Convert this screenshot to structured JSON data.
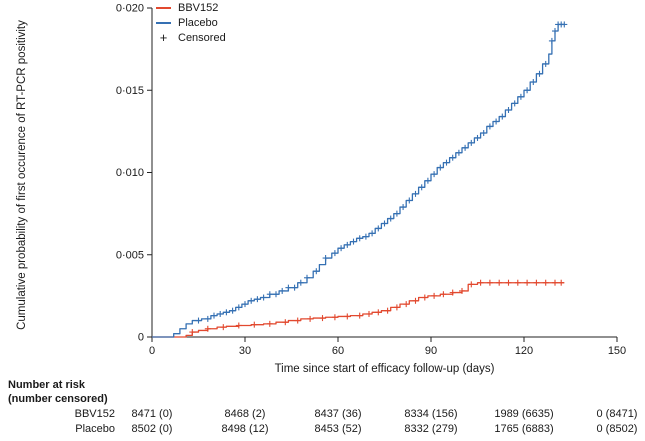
{
  "colors": {
    "axis": "#222222",
    "text": "#1a1a1a",
    "bbv152": "#e2492f",
    "placebo": "#3570b3"
  },
  "legend": {
    "items": [
      {
        "label": "BBV152",
        "color": "#e2492f"
      },
      {
        "label": "Placebo",
        "color": "#3570b3"
      },
      {
        "label": "Censored",
        "symbol": "+",
        "color": "#1a1a1a"
      }
    ]
  },
  "chart_data": {
    "type": "line",
    "subtype": "kaplan-meier-cumulative-incidence-step",
    "title": "",
    "xlabel": "Time since start of efficacy follow-up (days)",
    "ylabel": "Cumulative probability of first occurence of RT-PCR positivity",
    "xlim": [
      0,
      150
    ],
    "ylim": [
      0,
      0.02
    ],
    "grid": false,
    "legend_position": "top-left",
    "x_ticks": [
      {
        "value": 0,
        "label": "0"
      },
      {
        "value": 30,
        "label": "30"
      },
      {
        "value": 60,
        "label": "60"
      },
      {
        "value": 90,
        "label": "90"
      },
      {
        "value": 120,
        "label": "120"
      },
      {
        "value": 150,
        "label": "150"
      }
    ],
    "y_ticks": [
      {
        "value": 0,
        "label": "0"
      },
      {
        "value": 0.005,
        "label": "0·005"
      },
      {
        "value": 0.01,
        "label": "0·010"
      },
      {
        "value": 0.015,
        "label": "0·015"
      },
      {
        "value": 0.02,
        "label": "0·020"
      }
    ],
    "series": [
      {
        "name": "BBV152",
        "color": "#e2492f",
        "points": [
          [
            0,
            0
          ],
          [
            11,
            0.0001
          ],
          [
            13,
            0.0003
          ],
          [
            15,
            0.0004
          ],
          [
            18,
            0.0005
          ],
          [
            21,
            0.0006
          ],
          [
            24,
            0.00065
          ],
          [
            28,
            0.0007
          ],
          [
            32,
            0.00075
          ],
          [
            36,
            0.0008
          ],
          [
            40,
            0.0009
          ],
          [
            44,
            0.001
          ],
          [
            48,
            0.0011
          ],
          [
            52,
            0.00115
          ],
          [
            56,
            0.0012
          ],
          [
            60,
            0.00125
          ],
          [
            64,
            0.0013
          ],
          [
            68,
            0.0014
          ],
          [
            71,
            0.0015
          ],
          [
            74,
            0.0016
          ],
          [
            77,
            0.0018
          ],
          [
            80,
            0.002
          ],
          [
            83,
            0.0022
          ],
          [
            86,
            0.0024
          ],
          [
            89,
            0.0025
          ],
          [
            93,
            0.0026
          ],
          [
            97,
            0.0027
          ],
          [
            100,
            0.0028
          ],
          [
            102,
            0.0032
          ],
          [
            105,
            0.0033
          ],
          [
            133,
            0.0033
          ]
        ],
        "censor_days": [
          13,
          18,
          23,
          28,
          33,
          38,
          43,
          47,
          51,
          55,
          59,
          63,
          67,
          70,
          73,
          76,
          79,
          82,
          85,
          88,
          91,
          94,
          97,
          100,
          103,
          106,
          109,
          112,
          115,
          118,
          121,
          124,
          127,
          130,
          132
        ]
      },
      {
        "name": "Placebo",
        "color": "#3570b3",
        "points": [
          [
            0,
            0
          ],
          [
            7,
            0.0002
          ],
          [
            9,
            0.0005
          ],
          [
            11,
            0.0008
          ],
          [
            13,
            0.001
          ],
          [
            16,
            0.0011
          ],
          [
            19,
            0.0013
          ],
          [
            21,
            0.0014
          ],
          [
            23,
            0.0015
          ],
          [
            25,
            0.0016
          ],
          [
            27,
            0.0018
          ],
          [
            29,
            0.002
          ],
          [
            31,
            0.0022
          ],
          [
            33,
            0.0023
          ],
          [
            35,
            0.0024
          ],
          [
            38,
            0.0026
          ],
          [
            41,
            0.0028
          ],
          [
            44,
            0.003
          ],
          [
            47,
            0.0033
          ],
          [
            50,
            0.0036
          ],
          [
            52,
            0.004
          ],
          [
            54,
            0.0044
          ],
          [
            56,
            0.0048
          ],
          [
            58,
            0.0051
          ],
          [
            60,
            0.0054
          ],
          [
            62,
            0.0056
          ],
          [
            64,
            0.0058
          ],
          [
            66,
            0.006
          ],
          [
            68,
            0.0061
          ],
          [
            70,
            0.0063
          ],
          [
            72,
            0.0066
          ],
          [
            74,
            0.0069
          ],
          [
            76,
            0.0072
          ],
          [
            78,
            0.0075
          ],
          [
            80,
            0.0079
          ],
          [
            82,
            0.0083
          ],
          [
            84,
            0.0087
          ],
          [
            86,
            0.0091
          ],
          [
            88,
            0.0095
          ],
          [
            90,
            0.0099
          ],
          [
            92,
            0.0103
          ],
          [
            94,
            0.0106
          ],
          [
            96,
            0.0109
          ],
          [
            98,
            0.0112
          ],
          [
            100,
            0.0115
          ],
          [
            102,
            0.0118
          ],
          [
            104,
            0.0121
          ],
          [
            106,
            0.0124
          ],
          [
            108,
            0.0128
          ],
          [
            110,
            0.0131
          ],
          [
            112,
            0.0134
          ],
          [
            114,
            0.0138
          ],
          [
            116,
            0.0142
          ],
          [
            118,
            0.0146
          ],
          [
            120,
            0.015
          ],
          [
            122,
            0.0155
          ],
          [
            124,
            0.016
          ],
          [
            126,
            0.0166
          ],
          [
            128,
            0.0172
          ],
          [
            129,
            0.018
          ],
          [
            130,
            0.0186
          ],
          [
            131,
            0.019
          ],
          [
            133,
            0.019
          ]
        ],
        "censor_days": [
          15,
          18,
          20,
          22,
          24,
          26,
          28,
          30,
          32,
          34,
          36,
          38,
          40,
          42,
          44,
          46,
          48,
          50,
          53,
          56,
          59,
          61,
          63,
          65,
          67,
          69,
          71,
          73,
          75,
          77,
          79,
          81,
          83,
          85,
          87,
          89,
          91,
          93,
          95,
          97,
          99,
          101,
          103,
          105,
          107,
          109,
          111,
          113,
          115,
          117,
          119,
          121,
          123,
          125,
          127,
          129,
          130,
          131,
          132,
          133
        ]
      }
    ]
  },
  "risk_table": {
    "header_line1": "Number at risk",
    "header_line2": "(number censored)",
    "days": [
      0,
      30,
      60,
      90,
      120,
      150
    ],
    "rows": [
      {
        "label": "BBV152",
        "values": [
          "8471 (0)",
          "8468 (2)",
          "8437 (36)",
          "8334 (156)",
          "1989 (6635)",
          "0 (8471)"
        ]
      },
      {
        "label": "Placebo",
        "values": [
          "8502 (0)",
          "8498 (12)",
          "8453 (52)",
          "8332 (279)",
          "1765 (6883)",
          "0 (8502)"
        ]
      }
    ]
  }
}
